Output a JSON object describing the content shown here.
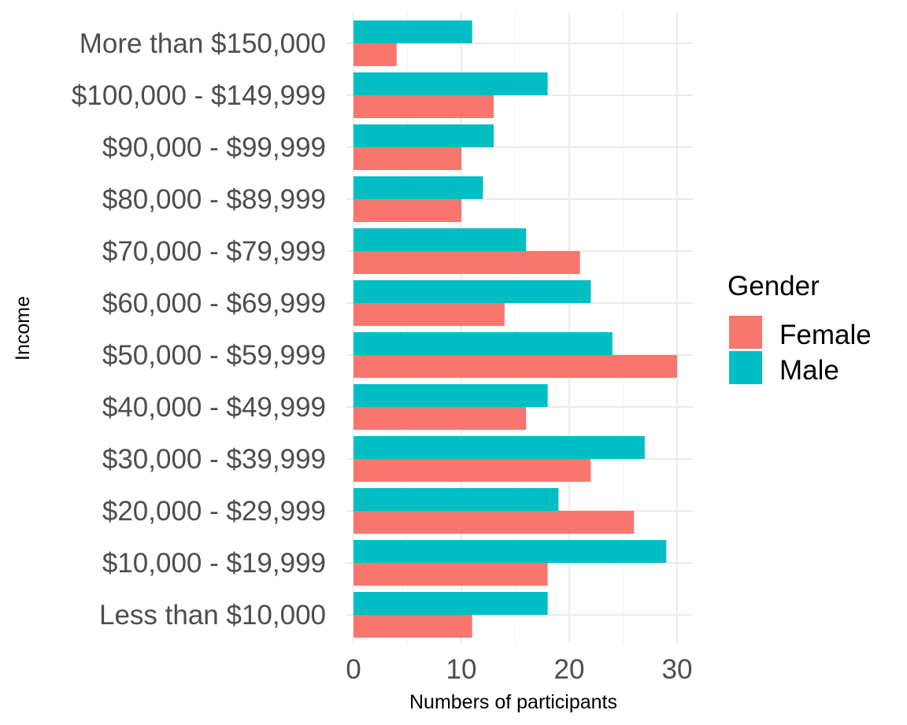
{
  "chart_data": {
    "type": "bar",
    "orientation": "horizontal",
    "title": "",
    "xlabel": "Numbers of participants",
    "ylabel": "Income",
    "xlim": [
      0,
      31.5
    ],
    "xticks": [
      0,
      10,
      20,
      30
    ],
    "grid": true,
    "categories": [
      "Less than $10,000",
      "$10,000 - $19,999",
      "$20,000 - $29,999",
      "$30,000 - $39,999",
      "$40,000 - $49,999",
      "$50,000 - $59,999",
      "$60,000 - $69,999",
      "$70,000 - $79,999",
      "$80,000 - $89,999",
      "$90,000 - $99,999",
      "$100,000 - $149,999",
      "More than $150,000"
    ],
    "series": [
      {
        "name": "Female",
        "color": "#F8766D",
        "values": [
          11,
          18,
          26,
          22,
          16,
          30,
          14,
          21,
          10,
          10,
          13,
          4
        ]
      },
      {
        "name": "Male",
        "color": "#00BFC4",
        "values": [
          18,
          29,
          19,
          27,
          18,
          24,
          22,
          16,
          12,
          13,
          18,
          11
        ]
      }
    ],
    "legend": {
      "title": "Gender",
      "position": "right"
    }
  }
}
